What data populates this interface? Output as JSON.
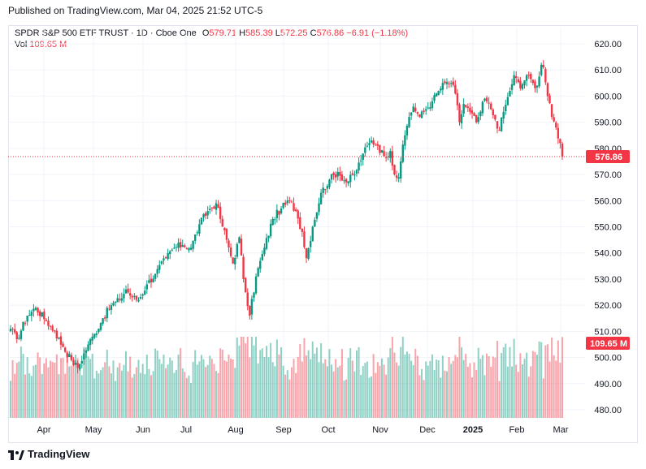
{
  "header": {
    "published": "Published on TradingView.com, Mar 04, 2025 21:52 UTC-5"
  },
  "legend": {
    "symbol": "SPDR S&P 500 ETF TRUST · 1D · Cboe One",
    "o_label": "O",
    "o_value": "579.71",
    "h_label": "H",
    "h_value": "585.39",
    "l_label": "L",
    "l_value": "572.25",
    "c_label": "C",
    "c_value": "576.86",
    "change": "−6.91 (−1.18%)",
    "vol_label": "Vol",
    "vol_value": "109.65 M"
  },
  "colors": {
    "up": "#089981",
    "down": "#f23645",
    "grid": "#f0f3fa",
    "text": "#131722"
  },
  "chart_data": {
    "type": "candlestick",
    "ylim": [
      476,
      625
    ],
    "y_ticks": [
      "620.00",
      "610.00",
      "600.00",
      "590.00",
      "580.00",
      "570.00",
      "560.00",
      "550.00",
      "540.00",
      "530.00",
      "520.00",
      "510.00",
      "500.00",
      "490.00",
      "480.00"
    ],
    "x_ticks": [
      "Apr",
      "May",
      "Jun",
      "Jul",
      "Aug",
      "Sep",
      "Oct",
      "Nov",
      "Dec",
      "2025",
      "Feb",
      "Mar"
    ],
    "last_price": 576.86,
    "last_price_label": "576.86",
    "last_volume_label": "109.65 M",
    "anchors": [
      [
        0,
        511
      ],
      [
        3,
        507
      ],
      [
        8,
        516
      ],
      [
        12,
        519
      ],
      [
        17,
        514
      ],
      [
        21,
        510
      ],
      [
        25,
        504
      ],
      [
        29,
        499
      ],
      [
        32,
        496
      ],
      [
        37,
        505
      ],
      [
        40,
        509
      ],
      [
        44,
        515
      ],
      [
        48,
        520
      ],
      [
        52,
        522
      ],
      [
        55,
        526
      ],
      [
        58,
        523
      ],
      [
        61,
        522
      ],
      [
        65,
        528
      ],
      [
        69,
        532
      ],
      [
        74,
        538
      ],
      [
        78,
        542
      ],
      [
        82,
        543
      ],
      [
        86,
        542
      ],
      [
        90,
        551
      ],
      [
        94,
        556
      ],
      [
        98,
        559
      ],
      [
        100,
        553
      ],
      [
        103,
        545
      ],
      [
        106,
        536
      ],
      [
        109,
        546
      ],
      [
        111,
        530
      ],
      [
        112,
        525
      ],
      [
        114,
        516
      ],
      [
        117,
        531
      ],
      [
        121,
        542
      ],
      [
        125,
        553
      ],
      [
        129,
        557
      ],
      [
        133,
        560
      ],
      [
        136,
        556
      ],
      [
        139,
        548
      ],
      [
        141,
        538
      ],
      [
        144,
        550
      ],
      [
        148,
        563
      ],
      [
        152,
        568
      ],
      [
        156,
        571
      ],
      [
        160,
        567
      ],
      [
        164,
        570
      ],
      [
        168,
        578
      ],
      [
        172,
        583
      ],
      [
        175,
        581
      ],
      [
        178,
        577
      ],
      [
        181,
        579
      ],
      [
        183,
        570
      ],
      [
        185,
        569
      ],
      [
        186,
        575
      ],
      [
        188,
        585
      ],
      [
        190,
        592
      ],
      [
        192,
        596
      ],
      [
        195,
        592
      ],
      [
        198,
        595
      ],
      [
        201,
        598
      ],
      [
        204,
        602
      ],
      [
        207,
        605
      ],
      [
        210,
        605
      ],
      [
        212,
        601
      ],
      [
        214,
        590
      ],
      [
        216,
        597
      ],
      [
        219,
        594
      ],
      [
        222,
        590
      ],
      [
        224,
        594
      ],
      [
        226,
        599
      ],
      [
        229,
        595
      ],
      [
        231,
        591
      ],
      [
        233,
        587
      ],
      [
        235,
        594
      ],
      [
        238,
        602
      ],
      [
        240,
        608
      ],
      [
        243,
        603
      ],
      [
        246,
        608
      ],
      [
        249,
        605
      ],
      [
        251,
        604
      ],
      [
        253,
        612
      ],
      [
        254,
        611
      ],
      [
        256,
        600
      ],
      [
        258,
        592
      ],
      [
        260,
        588
      ],
      [
        262,
        582
      ],
      [
        263,
        576.86
      ]
    ],
    "volume_range": [
      0,
      110
    ]
  }
}
